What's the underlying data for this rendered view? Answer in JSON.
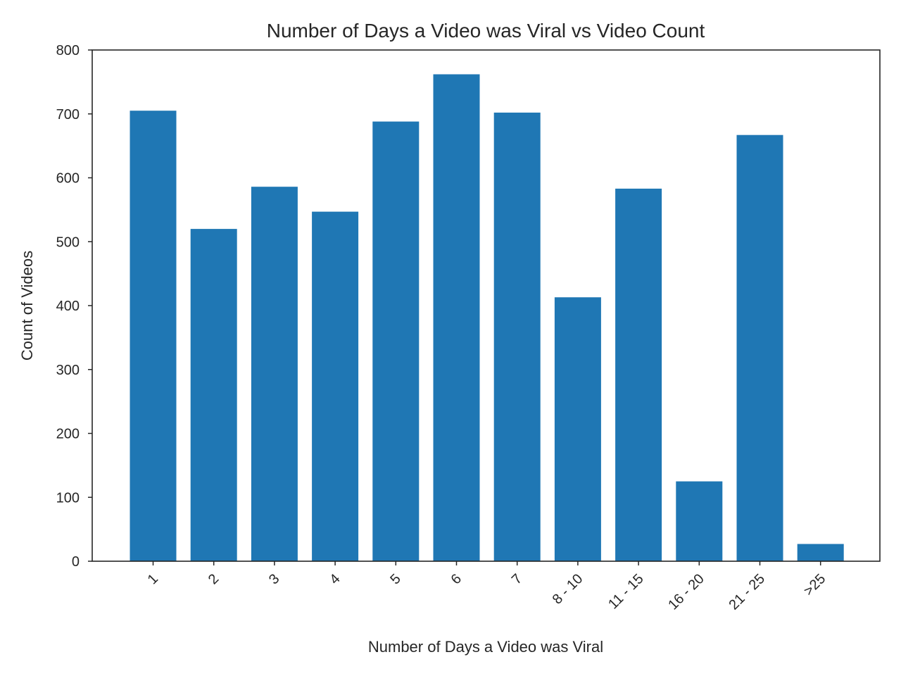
{
  "chart_data": {
    "type": "bar",
    "title": "Number of Days a Video was Viral vs Video Count",
    "xlabel": "Number of Days a Video was Viral",
    "ylabel": "Count of Videos",
    "categories": [
      "1",
      "2",
      "3",
      "4",
      "5",
      "6",
      "7",
      "8 - 10",
      "11 - 15",
      "16 - 20",
      "21 - 25",
      ">25"
    ],
    "values": [
      705,
      520,
      586,
      547,
      688,
      762,
      702,
      413,
      583,
      125,
      667,
      27
    ],
    "ylim": [
      0,
      800
    ],
    "yticks": [
      "0",
      "100",
      "200",
      "300",
      "400",
      "500",
      "600",
      "700",
      "800"
    ],
    "bar_color": "#1f77b4",
    "grid": false,
    "legend": "none",
    "xtick_rotation": "45"
  }
}
